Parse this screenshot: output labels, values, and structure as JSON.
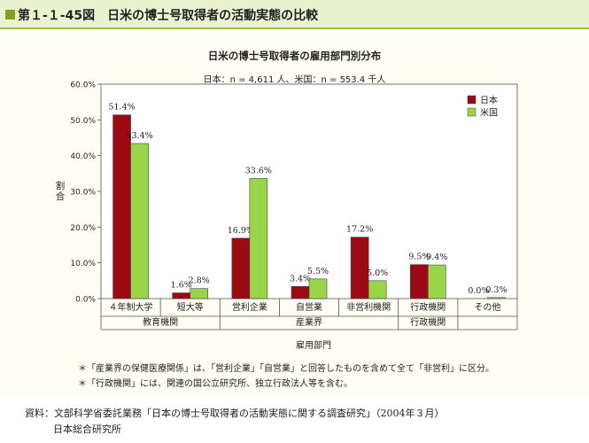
{
  "header": {
    "label": "第１-１-45図",
    "title": "日米の博士号取得者の活動実態の比較"
  },
  "chart_data": {
    "type": "bar",
    "title": "日米の博士号取得者の雇用部門別分布",
    "subtitle": "日本：n = 4,611 人、米国：n = 553.4 千人",
    "ylabel": "割合",
    "xlabel": "雇用部門",
    "ylim": [
      0,
      60
    ],
    "yticks": [
      "0.0%",
      "10.0%",
      "20.0%",
      "30.0%",
      "40.0%",
      "50.0%",
      "60.0%"
    ],
    "categories": [
      "４年制大学",
      "短大等",
      "営利企業",
      "自営業",
      "非営利機関",
      "行政機関",
      "その他"
    ],
    "groups": [
      {
        "label": "教育機関",
        "from": 0,
        "to": 1
      },
      {
        "label": "産業界",
        "from": 2,
        "to": 4
      },
      {
        "label": "行政機関",
        "from": 5,
        "to": 5
      }
    ],
    "series": [
      {
        "name": "日本",
        "color": "#9b0a12",
        "values": [
          51.4,
          1.6,
          16.9,
          3.4,
          17.2,
          9.5,
          0.0
        ],
        "labels": [
          "51.4%",
          "1.6%",
          "16.9%",
          "3.4%",
          "17.2%",
          "9.5%",
          "0.0%"
        ]
      },
      {
        "name": "米国",
        "color": "#9ad448",
        "values": [
          43.4,
          2.8,
          33.6,
          5.5,
          5.0,
          9.4,
          0.3
        ],
        "labels": [
          "43.4%",
          "2.8%",
          "33.6%",
          "5.5%",
          "5.0%",
          "9.4%",
          "0.3%"
        ]
      }
    ],
    "legend_position": "top-right",
    "grid": false
  },
  "notes": [
    "＊「産業界の保健医療関係」は、「営利企業」「自営業」と回答したものを含めて全て「非営利」に区分。",
    "＊「行政機関」には、関連の国公立研究所、独立行政法人等を含む。"
  ],
  "source": {
    "line1": "資料：文部科学省委託業務「日本の博士号取得者の活動実態に関する調査研究」（2004年３月）",
    "line2": "日本総合研究所"
  }
}
